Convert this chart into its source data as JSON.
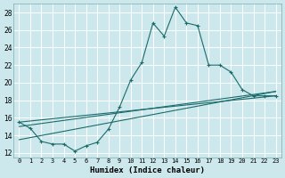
{
  "xlabel": "Humidex (Indice chaleur)",
  "xlim": [
    -0.5,
    23.5
  ],
  "ylim": [
    11.5,
    29
  ],
  "yticks": [
    12,
    14,
    16,
    18,
    20,
    22,
    24,
    26,
    28
  ],
  "xticks": [
    0,
    1,
    2,
    3,
    4,
    5,
    6,
    7,
    8,
    9,
    10,
    11,
    12,
    13,
    14,
    15,
    16,
    17,
    18,
    19,
    20,
    21,
    22,
    23
  ],
  "background_color": "#cde8ec",
  "grid_color": "#b8d8dc",
  "line_color": "#1a6b6b",
  "main_x": [
    0,
    1,
    2,
    3,
    4,
    5,
    6,
    7,
    8,
    9,
    10,
    11,
    12,
    13,
    14,
    15,
    16,
    17,
    18,
    19,
    20,
    21,
    22,
    23
  ],
  "main_y": [
    15.5,
    14.8,
    13.3,
    13.0,
    13.0,
    12.2,
    12.8,
    13.2,
    14.7,
    17.2,
    20.3,
    22.3,
    26.8,
    25.3,
    28.6,
    26.8,
    26.5,
    22.0,
    22.0,
    21.2,
    19.2,
    18.5,
    18.5,
    18.5
  ],
  "trend1_x": [
    0,
    23
  ],
  "trend1_y": [
    15.5,
    18.5
  ],
  "trend2_x": [
    0,
    23
  ],
  "trend2_y": [
    13.5,
    19.0
  ],
  "trend3_x": [
    0,
    23
  ],
  "trend3_y": [
    15.0,
    19.0
  ],
  "marker_size": 2.5
}
